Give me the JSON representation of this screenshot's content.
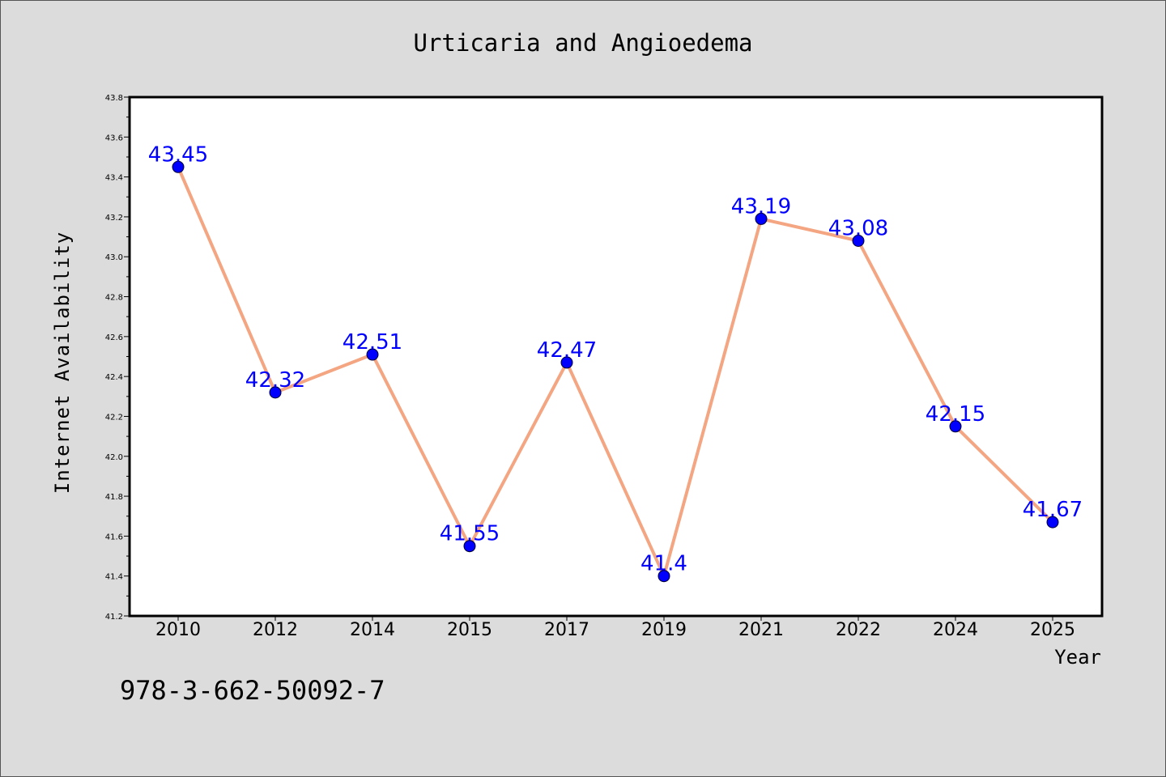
{
  "chart_data": {
    "type": "line",
    "title": "Urticaria and Angioedema",
    "xlabel": "Year",
    "ylabel": "Internet Availability",
    "categories": [
      "2010",
      "2012",
      "2014",
      "2015",
      "2017",
      "2019",
      "2021",
      "2022",
      "2024",
      "2025"
    ],
    "series": [
      {
        "values": [
          43.45,
          42.32,
          42.51,
          41.55,
          42.47,
          41.4,
          43.19,
          43.08,
          42.15,
          41.67
        ]
      }
    ],
    "data_labels": [
      "43.45",
      "42.32",
      "42.51",
      "41.55",
      "42.47",
      "41.4",
      "43.19",
      "43.08",
      "42.15",
      "41.67"
    ],
    "ylim": [
      41.2,
      43.8
    ],
    "yticks": [
      "41.2",
      "41.4",
      "41.6",
      "41.8",
      "42.0",
      "42.2",
      "42.4",
      "42.6",
      "42.8",
      "43.0",
      "43.2",
      "43.4",
      "43.6",
      "43.8"
    ],
    "grid": false,
    "legend": "none",
    "colors": {
      "line": "#f4a582",
      "marker": "#0000ff",
      "label": "#0000ff",
      "background": "#dcdcdc",
      "plot_bg": "#ffffff"
    }
  },
  "footer_text": "978-3-662-50092-7"
}
